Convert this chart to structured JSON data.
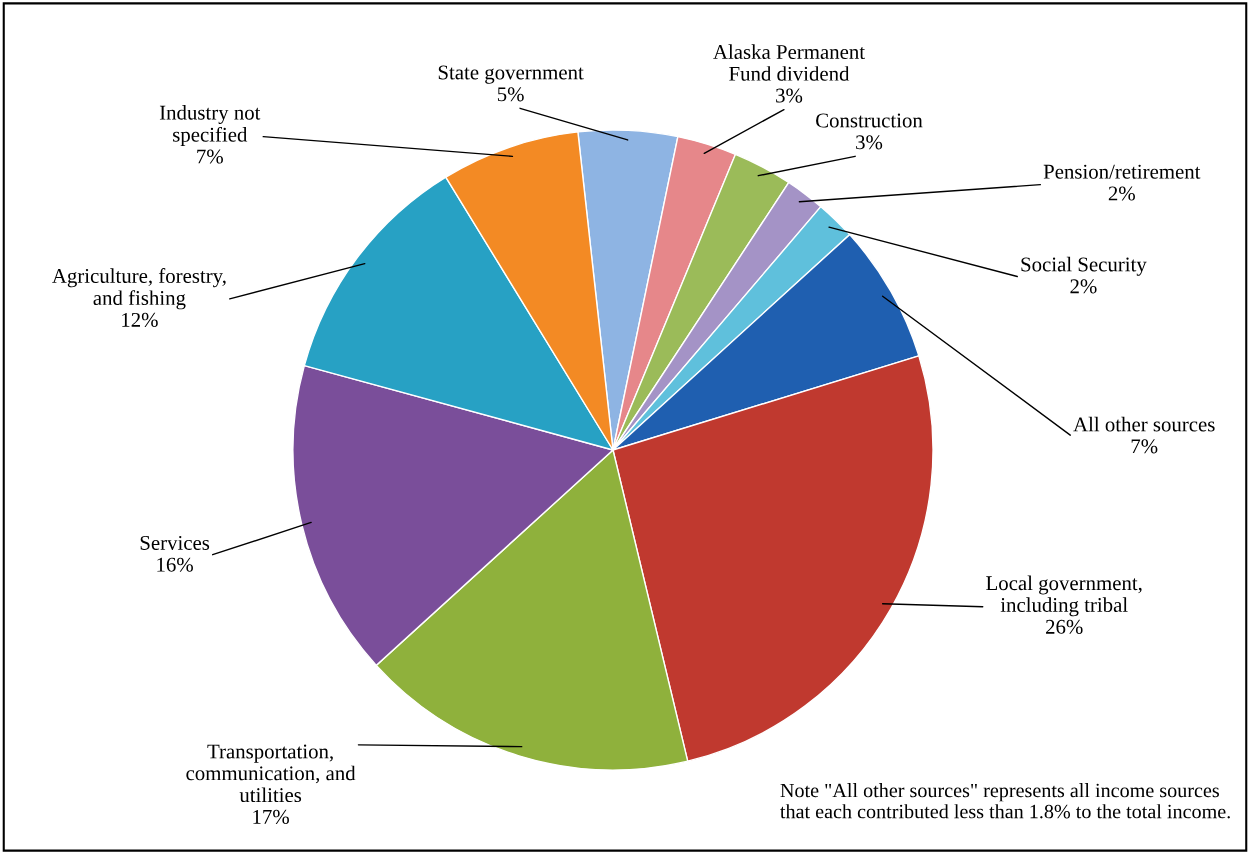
{
  "chart_data": {
    "type": "pie",
    "categories": [
      "State government",
      "Alaska Permanent\nFund dividend",
      "Construction",
      "Pension/retirement",
      "Social Security",
      "All other sources",
      "Local government,\nincluding tribal",
      "Transportation,\ncommunication, and\nutilities",
      "Services",
      "Agriculture, forestry,\nand fishing",
      "Industry not\nspecified"
    ],
    "values": [
      5,
      3,
      3,
      2,
      2,
      7,
      26,
      17,
      16,
      12,
      7
    ],
    "value_labels": [
      "5%",
      "3%",
      "3%",
      "2%",
      "2%",
      "7%",
      "26%",
      "17%",
      "16%",
      "12%",
      "7%"
    ],
    "colors": [
      "#8eb4e3",
      "#e6878a",
      "#9bbb59",
      "#a493c6",
      "#5fc0dc",
      "#1f5fb0",
      "#c0392f",
      "#8fb13c",
      "#7a4e9a",
      "#27a1c4",
      "#f38a24"
    ],
    "annotations": [
      "Note \"All other sources\" represents all income sources\nthat each contributed less than 1.8% to the total income."
    ],
    "legend": false
  }
}
